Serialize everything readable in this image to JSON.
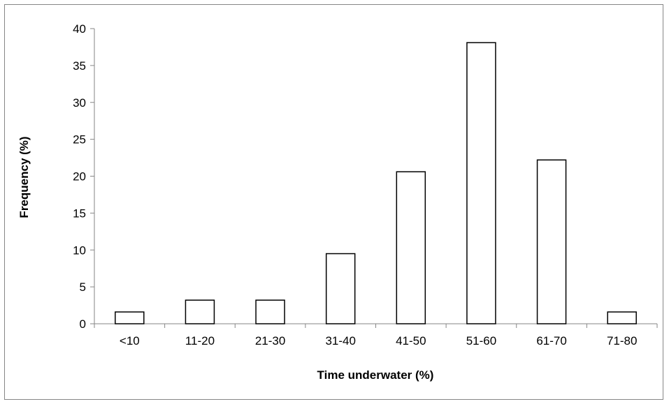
{
  "chart_data": {
    "type": "bar",
    "title": "",
    "xlabel": "Time underwater (%)",
    "ylabel": "Frequency (%)",
    "categories": [
      "<10",
      "11-20",
      "21-30",
      "31-40",
      "41-50",
      "51-60",
      "61-70",
      "71-80"
    ],
    "values": [
      1.6,
      3.2,
      3.2,
      9.5,
      20.6,
      38.1,
      22.2,
      1.6
    ],
    "ylim": [
      0,
      40
    ],
    "yticks": [
      0,
      5,
      10,
      15,
      20,
      25,
      30,
      35,
      40
    ],
    "grid": false,
    "legend": "none",
    "colors": {
      "bar_fill": "#ffffff",
      "bar_stroke": "#000000",
      "axis": "#868686",
      "frame": "#868686"
    }
  }
}
